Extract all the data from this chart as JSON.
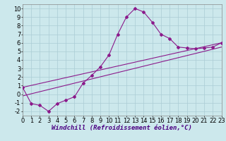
{
  "xlabel": "Windchill (Refroidissement éolien,°C)",
  "bg_color": "#cce8ec",
  "line_color": "#8b1a8b",
  "marker_color": "#8b1a8b",
  "xlim": [
    0,
    23
  ],
  "ylim": [
    -2.5,
    10.5
  ],
  "xticks": [
    0,
    1,
    2,
    3,
    4,
    5,
    6,
    7,
    8,
    9,
    10,
    11,
    12,
    13,
    14,
    15,
    16,
    17,
    18,
    19,
    20,
    21,
    22,
    23
  ],
  "yticks": [
    -2,
    -1,
    0,
    1,
    2,
    3,
    4,
    5,
    6,
    7,
    8,
    9,
    10
  ],
  "curve1_x": [
    0,
    1,
    2,
    3,
    4,
    5,
    6,
    7,
    8,
    9,
    10,
    11,
    12,
    13,
    14,
    15,
    16,
    17,
    18,
    19,
    20,
    21,
    22,
    23
  ],
  "curve1_y": [
    0.8,
    -1.1,
    -1.3,
    -2.0,
    -1.1,
    -0.7,
    -0.3,
    1.3,
    2.2,
    3.2,
    4.6,
    7.0,
    9.0,
    10.0,
    9.6,
    8.4,
    7.0,
    6.5,
    5.5,
    5.4,
    5.3,
    5.4,
    5.5,
    6.0
  ],
  "line2_x": [
    0,
    23
  ],
  "line2_y": [
    0.8,
    6.0
  ],
  "line3_x": [
    0,
    23
  ],
  "line3_y": [
    -0.2,
    5.5
  ],
  "grid_color": "#aaccd4",
  "font_size_label": 6.5,
  "font_size_tick": 6
}
